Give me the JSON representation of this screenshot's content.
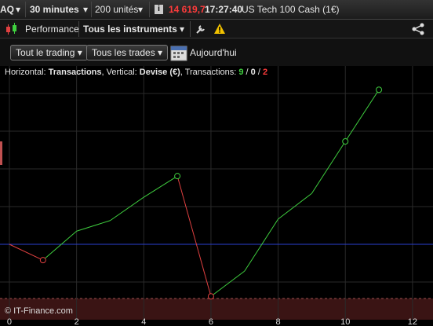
{
  "toolbar": {
    "instrument": "AQ",
    "period": "30 minutes",
    "units": "200 unités",
    "info_icon": "i",
    "price": "14 619,7",
    "time": "17:27:40",
    "name": "US Tech 100 Cash (1€)"
  },
  "tabs": {
    "performance": "Performance",
    "instruments": "Tous les instruments"
  },
  "filters": {
    "trading": "Tout le trading",
    "trades": "Tous les trades",
    "date": "Aujourd'hui"
  },
  "info": {
    "h_label": "Horizontal: ",
    "h_value": "Transactions",
    "v_label": ", Vertical: ",
    "v_value": "Devise (€)",
    "t_label": ", Transactions: ",
    "wins": "9",
    "sep": " / ",
    "even": "0",
    "losses": "2"
  },
  "copyright": "© IT-Finance.com",
  "chart_data": {
    "type": "line",
    "x": [
      0,
      1,
      2,
      3,
      4,
      5,
      6,
      7,
      8,
      9,
      10,
      11
    ],
    "values": [
      0,
      -4.2,
      3.5,
      6.3,
      12.5,
      18.1,
      -13.8,
      -7.1,
      6.7,
      13.5,
      27.3,
      41.0
    ],
    "markers": [
      false,
      true,
      false,
      false,
      false,
      true,
      true,
      false,
      false,
      false,
      true,
      true
    ],
    "up_color": "#3fcf3f",
    "down_color": "#e04040",
    "baseline_color": "#2a3fd0",
    "xlim": [
      -0.28,
      12.61
    ],
    "xticks": [
      0,
      2,
      4,
      6,
      8,
      10,
      12
    ],
    "ylim": [
      -20,
      47.3
    ],
    "yticks": [
      -10,
      10,
      20,
      30,
      40
    ],
    "grid": true
  }
}
